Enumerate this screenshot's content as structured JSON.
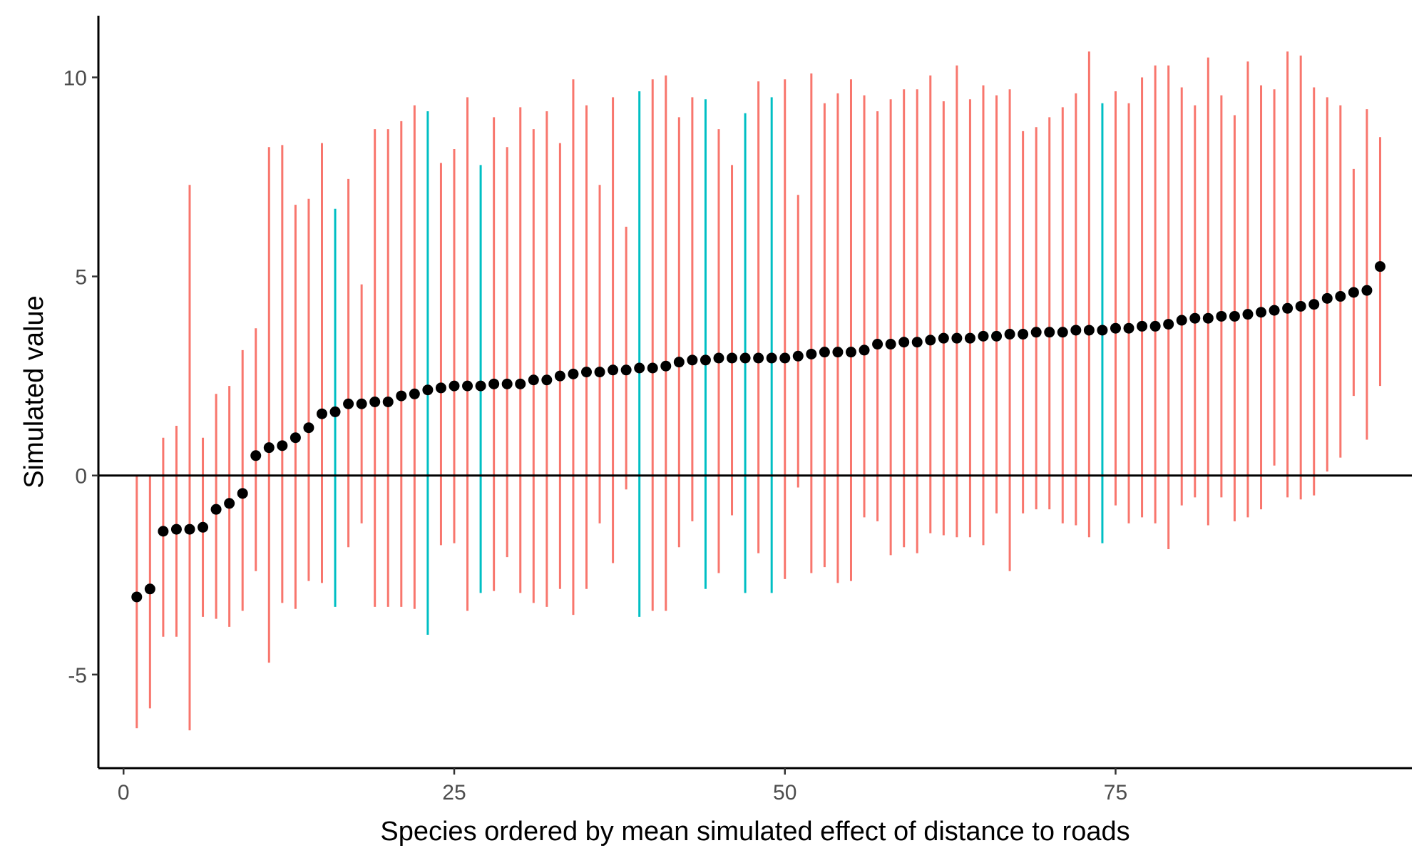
{
  "chart_data": {
    "type": "errorbar-scatter",
    "title": "",
    "xlabel": "Species ordered by mean simulated effect of distance to roads",
    "ylabel": "Simulated value",
    "xlim": [
      -1.9,
      97.4
    ],
    "ylim": [
      -7.35,
      11.55
    ],
    "xticks": [
      0,
      25,
      50,
      75
    ],
    "yticks": [
      -5,
      0,
      5,
      10
    ],
    "xtick_labels": [
      "0",
      "25",
      "50",
      "75"
    ],
    "ytick_labels": [
      "-5",
      "0",
      "5",
      "10"
    ],
    "reference_line_y": 0,
    "grid": false,
    "legend": "none",
    "colors": {
      "interval_default": "#F8766D",
      "interval_alt": "#00BFC4",
      "point": "#000000",
      "axis": "#000000",
      "tick_text": "#4d4d4d"
    },
    "x": [
      1,
      2,
      3,
      4,
      5,
      6,
      7,
      8,
      9,
      10,
      11,
      12,
      13,
      14,
      15,
      16,
      17,
      18,
      19,
      20,
      21,
      22,
      23,
      24,
      25,
      26,
      27,
      28,
      29,
      30,
      31,
      32,
      33,
      34,
      35,
      36,
      37,
      38,
      39,
      40,
      41,
      42,
      43,
      44,
      45,
      46,
      47,
      48,
      49,
      50,
      51,
      52,
      53,
      54,
      55,
      56,
      57,
      58,
      59,
      60,
      61,
      62,
      63,
      64,
      65,
      66,
      67,
      68,
      69,
      70,
      71,
      72,
      73,
      74,
      75,
      76,
      77,
      78,
      79,
      80,
      81,
      82,
      83,
      84,
      85,
      86,
      87,
      88,
      89,
      90,
      91,
      92,
      93,
      94,
      95
    ],
    "mean": [
      -3.05,
      -2.85,
      -1.4,
      -1.35,
      -1.35,
      -1.3,
      -0.85,
      -0.7,
      -0.45,
      0.5,
      0.7,
      0.75,
      0.95,
      1.2,
      1.55,
      1.6,
      1.8,
      1.8,
      1.85,
      1.85,
      2.0,
      2.05,
      2.15,
      2.2,
      2.25,
      2.25,
      2.25,
      2.3,
      2.3,
      2.3,
      2.4,
      2.4,
      2.5,
      2.55,
      2.6,
      2.6,
      2.65,
      2.65,
      2.7,
      2.7,
      2.75,
      2.85,
      2.9,
      2.9,
      2.95,
      2.95,
      2.95,
      2.95,
      2.95,
      2.95,
      3.0,
      3.05,
      3.1,
      3.1,
      3.1,
      3.15,
      3.3,
      3.3,
      3.35,
      3.35,
      3.4,
      3.45,
      3.45,
      3.45,
      3.5,
      3.5,
      3.55,
      3.55,
      3.6,
      3.6,
      3.6,
      3.65,
      3.65,
      3.65,
      3.7,
      3.7,
      3.75,
      3.75,
      3.8,
      3.9,
      3.95,
      3.95,
      4.0,
      4.0,
      4.05,
      4.1,
      4.15,
      4.2,
      4.25,
      4.3,
      4.45,
      4.5,
      4.6,
      4.65,
      5.25
    ],
    "lower": [
      -6.35,
      -5.85,
      -4.05,
      -4.05,
      -6.4,
      -3.55,
      -3.6,
      -3.8,
      -3.4,
      -2.4,
      -4.7,
      -3.2,
      -3.35,
      -2.65,
      -2.7,
      -3.3,
      -1.8,
      -1.2,
      -3.3,
      -3.3,
      -3.3,
      -3.35,
      -4.0,
      -1.75,
      -1.7,
      -3.4,
      -2.95,
      -2.9,
      -2.05,
      -2.95,
      -3.2,
      -3.3,
      -2.85,
      -3.5,
      -2.85,
      -1.2,
      -2.2,
      -0.35,
      -3.55,
      -3.4,
      -3.4,
      -1.8,
      -1.15,
      -2.85,
      -2.45,
      -1.0,
      -2.95,
      -1.95,
      -2.95,
      -2.6,
      -0.3,
      -2.45,
      -2.3,
      -2.7,
      -2.65,
      -1.05,
      -1.15,
      -2.0,
      -1.8,
      -1.95,
      -1.45,
      -1.5,
      -1.55,
      -1.55,
      -1.75,
      -0.95,
      -2.4,
      -0.95,
      -0.85,
      -0.85,
      -1.2,
      -1.25,
      -1.55,
      -1.7,
      -0.75,
      -1.2,
      -1.05,
      -1.2,
      -1.85,
      -0.75,
      -0.55,
      -1.25,
      -0.55,
      -1.15,
      -1.05,
      -0.85,
      0.25,
      -0.55,
      -0.6,
      -0.5,
      0.1,
      0.45,
      2.0,
      0.9,
      2.25
    ],
    "upper": [
      0.0,
      0.0,
      0.95,
      1.25,
      7.3,
      0.95,
      2.05,
      2.25,
      3.15,
      3.7,
      8.25,
      8.3,
      6.8,
      6.95,
      8.35,
      6.7,
      7.45,
      4.8,
      8.7,
      8.7,
      8.9,
      9.3,
      9.15,
      7.85,
      8.2,
      9.5,
      7.8,
      9.0,
      8.25,
      9.25,
      8.7,
      9.15,
      8.35,
      9.95,
      9.3,
      7.3,
      9.5,
      6.25,
      9.65,
      9.95,
      10.05,
      9.0,
      9.5,
      9.45,
      8.7,
      7.8,
      9.1,
      9.9,
      9.5,
      9.95,
      7.05,
      10.1,
      9.35,
      9.6,
      9.95,
      9.55,
      9.15,
      9.45,
      9.7,
      9.7,
      10.05,
      9.4,
      10.3,
      9.45,
      9.8,
      9.55,
      9.7,
      8.65,
      8.75,
      9.0,
      9.25,
      9.6,
      10.65,
      9.35,
      9.65,
      9.35,
      10.0,
      10.3,
      10.3,
      9.75,
      9.3,
      10.5,
      9.55,
      9.05,
      10.4,
      9.8,
      9.7,
      10.65,
      10.55,
      9.75,
      9.5,
      9.3,
      7.7,
      9.2,
      8.5
    ],
    "interval_group": [
      "default",
      "default",
      "default",
      "default",
      "default",
      "default",
      "default",
      "default",
      "default",
      "default",
      "default",
      "default",
      "default",
      "default",
      "default",
      "alt",
      "default",
      "default",
      "default",
      "default",
      "default",
      "default",
      "alt",
      "default",
      "default",
      "default",
      "alt",
      "default",
      "default",
      "default",
      "default",
      "default",
      "default",
      "default",
      "default",
      "default",
      "default",
      "default",
      "alt",
      "default",
      "default",
      "default",
      "default",
      "alt",
      "default",
      "default",
      "alt",
      "default",
      "alt",
      "default",
      "default",
      "default",
      "default",
      "default",
      "default",
      "default",
      "default",
      "default",
      "default",
      "default",
      "default",
      "default",
      "default",
      "default",
      "default",
      "default",
      "default",
      "default",
      "default",
      "default",
      "default",
      "default",
      "default",
      "alt",
      "default",
      "default",
      "default",
      "default",
      "default",
      "default",
      "default",
      "default",
      "default",
      "default",
      "default",
      "default",
      "default",
      "default",
      "default",
      "default",
      "default",
      "default",
      "default",
      "default",
      "default"
    ]
  }
}
